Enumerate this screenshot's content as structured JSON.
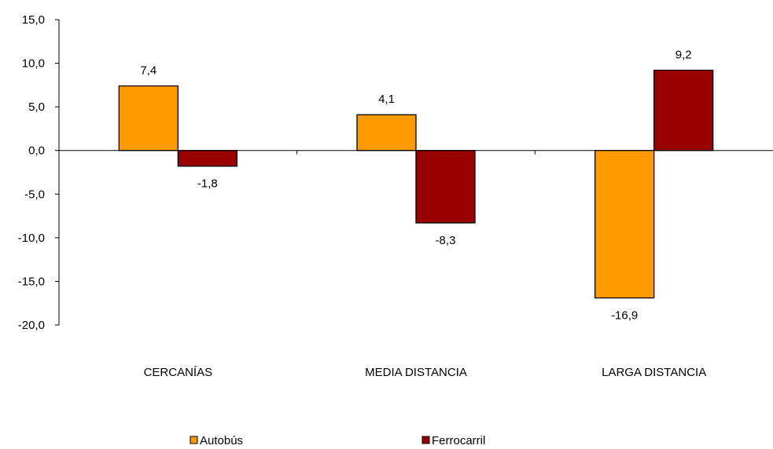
{
  "chart_data": {
    "type": "bar",
    "categories": [
      "CERCANÍAS",
      "MEDIA DISTANCIA",
      "LARGA DISTANCIA"
    ],
    "series": [
      {
        "name": "Autobús",
        "values": [
          7.4,
          4.1,
          -16.9
        ],
        "color": "#ff9900"
      },
      {
        "name": "Ferrocarril",
        "values": [
          -1.8,
          -8.3,
          9.2
        ],
        "color": "#990000"
      }
    ],
    "data_labels": [
      [
        "7,4",
        "4,1",
        "-16,9"
      ],
      [
        "-1,8",
        "-8,3",
        "9,2"
      ]
    ],
    "yticks": [
      15,
      10,
      5,
      0,
      -5,
      -10,
      -15,
      -20
    ],
    "ytick_labels": [
      "15,0",
      "10,0",
      "5,0",
      "0,0",
      "-5,0",
      "-10,0",
      "-15,0",
      "-20,0"
    ],
    "ylim": [
      -20,
      15
    ],
    "grid": false,
    "legend_position": "bottom"
  }
}
